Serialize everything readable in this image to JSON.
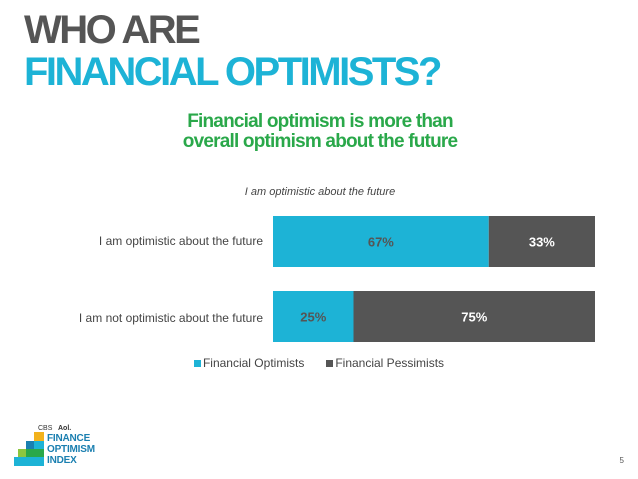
{
  "header": {
    "title_line1": "WHO ARE",
    "title_line2": "FINANCIAL OPTIMISTS?",
    "subtitle_line1": "Financial optimism is more than",
    "subtitle_line2": "overall optimism about the future"
  },
  "chart_data": {
    "type": "bar",
    "orientation": "horizontal",
    "stacked": "100%",
    "title": "I am optimistic about the future",
    "categories": [
      "I am optimistic about the future",
      "I am not optimistic about the future"
    ],
    "series": [
      {
        "name": "Financial Optimists",
        "values": [
          67,
          25
        ],
        "labels": [
          "67%",
          "25%"
        ],
        "color": "#1db3d6"
      },
      {
        "name": "Financial Pessimists",
        "values": [
          33,
          75
        ],
        "labels": [
          "33%",
          "75%"
        ],
        "color": "#555555"
      }
    ],
    "xlim": [
      0,
      100
    ],
    "grid": false,
    "legend_position": "bottom"
  },
  "logo": {
    "brand1": "CBS",
    "brand2": "Aol.",
    "line1": "FINANCE",
    "line2": "OPTIMISM",
    "line3": "INDEX"
  },
  "page_number": "5"
}
